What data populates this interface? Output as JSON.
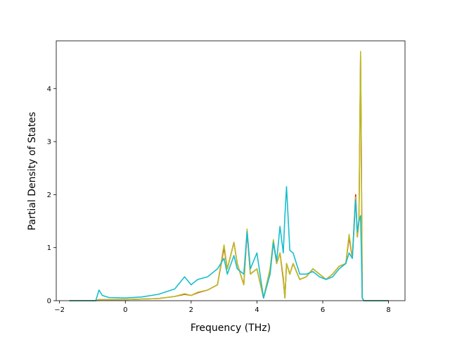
{
  "chart_data": {
    "type": "line",
    "title": "",
    "xlabel": "Frequency (THz)",
    "ylabel": "Partial Density of States",
    "xlim": [
      -2.1,
      8.5
    ],
    "ylim": [
      0,
      4.9
    ],
    "x_ticks": [
      -2,
      0,
      2,
      4,
      6,
      8
    ],
    "x_tick_labels": [
      "−2",
      "0",
      "2",
      "4",
      "6",
      "8"
    ],
    "y_ticks": [
      0,
      1,
      2,
      3,
      4
    ],
    "y_tick_labels": [
      "0",
      "1",
      "2",
      "3",
      "4"
    ],
    "grid": false,
    "series": [
      {
        "color": "#d62728",
        "x": [
          -1.7,
          -0.9,
          -0.85,
          -0.8,
          -0.7,
          -0.5,
          0,
          0.5,
          1,
          1.5,
          1.8,
          2,
          2.2,
          2.5,
          2.8,
          3.0,
          3.1,
          3.3,
          3.4,
          3.6,
          3.7,
          3.8,
          4.0,
          4.2,
          4.4,
          4.5,
          4.6,
          4.7,
          4.8,
          4.85,
          4.9,
          5.0,
          5.1,
          5.3,
          5.5,
          5.7,
          5.9,
          6.1,
          6.3,
          6.5,
          6.7,
          6.8,
          6.9,
          7.0,
          7.05,
          7.1,
          7.15,
          7.17,
          7.2,
          7.25,
          8.0
        ],
        "y": [
          0,
          0,
          0.01,
          0.02,
          0.02,
          0.02,
          0.02,
          0.03,
          0.04,
          0.08,
          0.12,
          0.1,
          0.15,
          0.2,
          0.3,
          1.0,
          0.6,
          1.1,
          0.7,
          0.3,
          1.3,
          0.5,
          0.6,
          0.05,
          0.6,
          1.1,
          0.7,
          0.9,
          0.4,
          0.05,
          0.7,
          0.5,
          0.7,
          0.4,
          0.45,
          0.6,
          0.5,
          0.4,
          0.5,
          0.65,
          0.7,
          1.2,
          0.8,
          2.0,
          1.2,
          1.5,
          4.6,
          3.0,
          0.05,
          0,
          0
        ]
      },
      {
        "color": "#bcbd22",
        "x": [
          -1.7,
          -0.9,
          -0.85,
          -0.8,
          -0.7,
          -0.5,
          0,
          0.5,
          1,
          1.5,
          1.8,
          2,
          2.2,
          2.5,
          2.8,
          3.0,
          3.1,
          3.3,
          3.4,
          3.6,
          3.7,
          3.8,
          4.0,
          4.2,
          4.4,
          4.5,
          4.6,
          4.7,
          4.8,
          4.85,
          4.9,
          5.0,
          5.1,
          5.3,
          5.5,
          5.7,
          5.9,
          6.1,
          6.3,
          6.5,
          6.7,
          6.8,
          6.9,
          7.0,
          7.05,
          7.1,
          7.15,
          7.17,
          7.2,
          7.25,
          8.0
        ],
        "y": [
          0,
          0,
          0.01,
          0.02,
          0.02,
          0.02,
          0.02,
          0.03,
          0.04,
          0.08,
          0.13,
          0.1,
          0.16,
          0.2,
          0.3,
          1.05,
          0.6,
          1.1,
          0.7,
          0.3,
          1.35,
          0.5,
          0.6,
          0.05,
          0.6,
          1.15,
          0.7,
          0.9,
          0.45,
          0.05,
          0.7,
          0.5,
          0.7,
          0.4,
          0.45,
          0.6,
          0.5,
          0.4,
          0.5,
          0.65,
          0.7,
          1.25,
          0.8,
          1.95,
          1.2,
          1.5,
          4.7,
          3.0,
          0.05,
          0,
          0
        ]
      },
      {
        "color": "#17becf",
        "x": [
          -1.7,
          -0.9,
          -0.85,
          -0.8,
          -0.7,
          -0.5,
          0,
          0.5,
          1,
          1.5,
          1.8,
          2,
          2.2,
          2.5,
          2.8,
          3.0,
          3.1,
          3.3,
          3.4,
          3.6,
          3.7,
          3.8,
          4.0,
          4.2,
          4.4,
          4.5,
          4.6,
          4.7,
          4.8,
          4.85,
          4.9,
          5.0,
          5.1,
          5.3,
          5.5,
          5.7,
          5.9,
          6.1,
          6.3,
          6.5,
          6.7,
          6.8,
          6.9,
          7.0,
          7.05,
          7.1,
          7.15,
          7.17,
          7.2,
          7.25,
          8.0
        ],
        "y": [
          0,
          0,
          0.1,
          0.2,
          0.1,
          0.06,
          0.05,
          0.07,
          0.12,
          0.22,
          0.45,
          0.3,
          0.4,
          0.45,
          0.6,
          0.8,
          0.5,
          0.85,
          0.6,
          0.5,
          1.3,
          0.6,
          0.9,
          0.05,
          0.5,
          1.1,
          0.75,
          1.4,
          0.9,
          1.6,
          2.15,
          0.95,
          0.9,
          0.5,
          0.5,
          0.55,
          0.45,
          0.4,
          0.45,
          0.6,
          0.7,
          0.9,
          0.8,
          1.9,
          1.3,
          1.5,
          1.6,
          1.0,
          0.05,
          0,
          0
        ]
      }
    ]
  }
}
